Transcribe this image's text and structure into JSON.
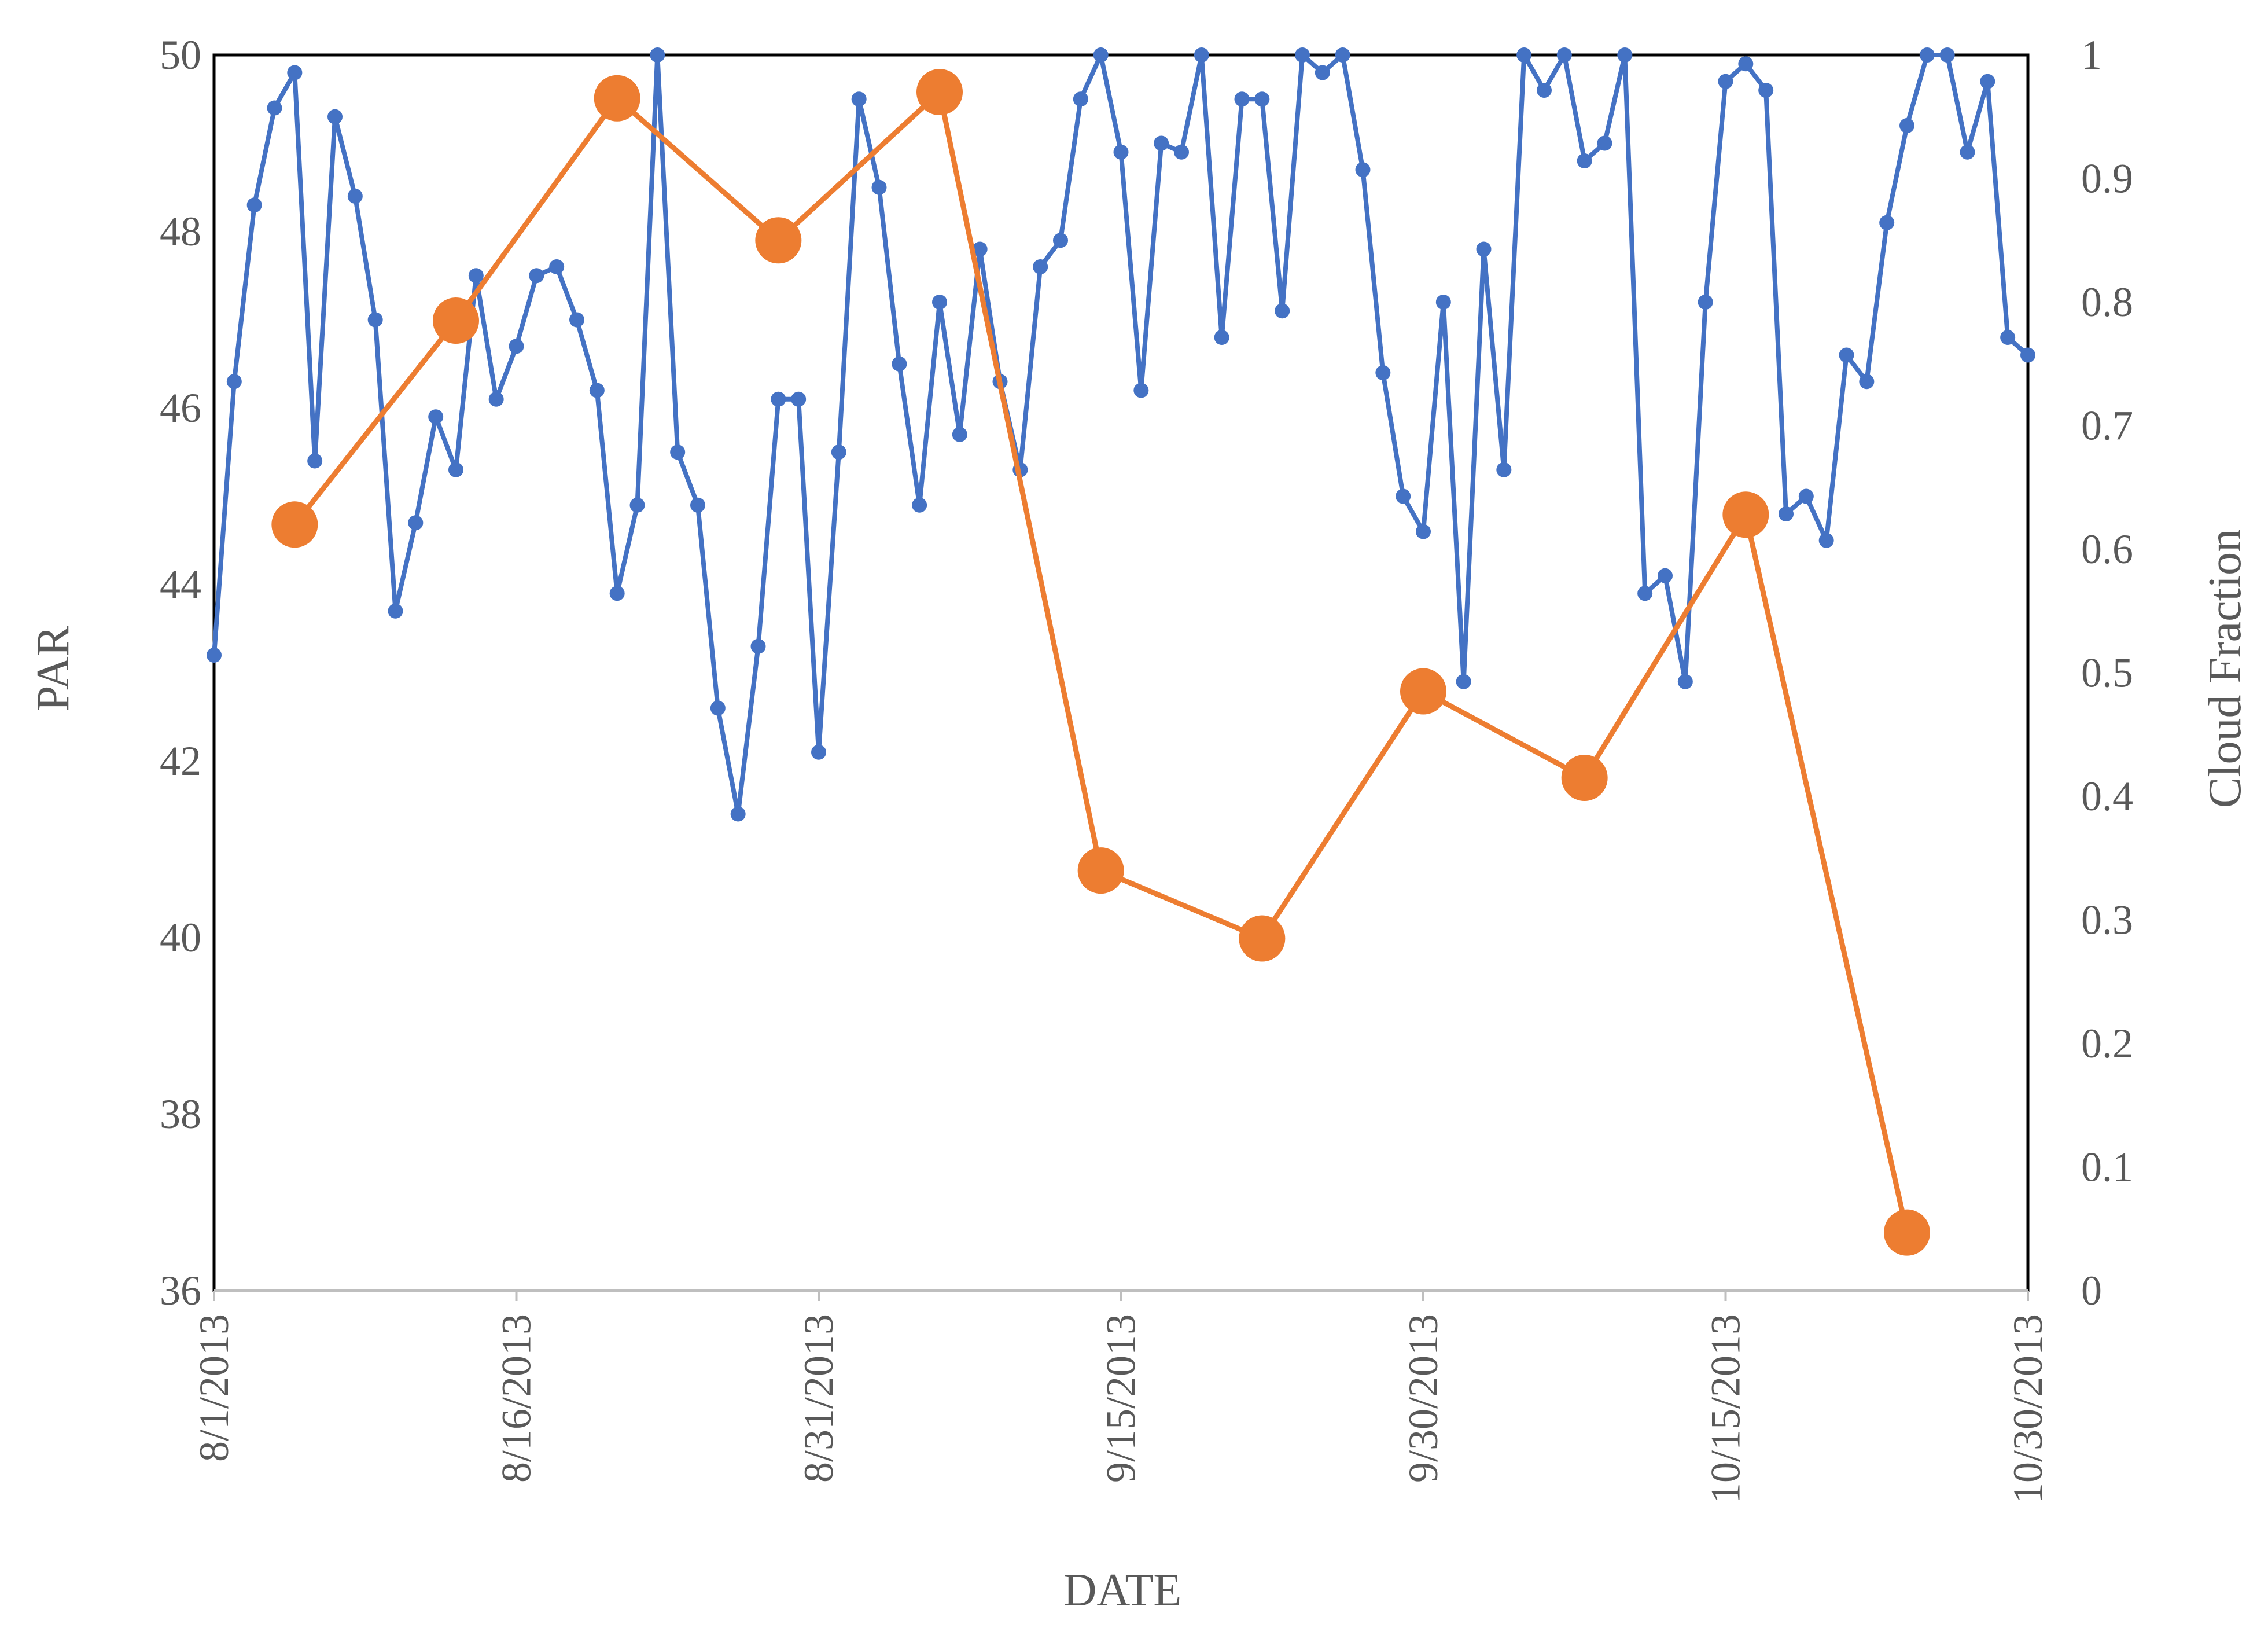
{
  "chart_data": {
    "type": "line",
    "title": "",
    "xlabel": "DATE",
    "ylabel_left": "PAR",
    "ylabel_right": "Cloud Fraction",
    "x_range": [
      "2013-08-01",
      "2013-10-30"
    ],
    "x_tick_labels": [
      "8/1/2013",
      "8/16/2013",
      "8/31/2013",
      "9/15/2013",
      "9/30/2013",
      "10/15/2013",
      "10/30/2013"
    ],
    "y_left_range": [
      36,
      50
    ],
    "y_left_ticks": [
      "36",
      "38",
      "40",
      "42",
      "44",
      "46",
      "48",
      "50"
    ],
    "y_right_range": [
      0,
      1
    ],
    "y_right_ticks": [
      "0",
      "0.1",
      "0.2",
      "0.3",
      "0.4",
      "0.5",
      "0.6",
      "0.7",
      "0.8",
      "0.9",
      "1"
    ],
    "grid": false,
    "legend": "none",
    "series": [
      {
        "axis": "left",
        "color": "#4472C4",
        "x": [
          "2013-08-01",
          "2013-08-02",
          "2013-08-03",
          "2013-08-04",
          "2013-08-05",
          "2013-08-06",
          "2013-08-07",
          "2013-08-08",
          "2013-08-09",
          "2013-08-10",
          "2013-08-11",
          "2013-08-12",
          "2013-08-13",
          "2013-08-14",
          "2013-08-15",
          "2013-08-16",
          "2013-08-17",
          "2013-08-18",
          "2013-08-19",
          "2013-08-20",
          "2013-08-21",
          "2013-08-22",
          "2013-08-23",
          "2013-08-24",
          "2013-08-25",
          "2013-08-26",
          "2013-08-27",
          "2013-08-28",
          "2013-08-29",
          "2013-08-30",
          "2013-08-31",
          "2013-09-01",
          "2013-09-02",
          "2013-09-03",
          "2013-09-04",
          "2013-09-05",
          "2013-09-06",
          "2013-09-07",
          "2013-09-08",
          "2013-09-09",
          "2013-09-10",
          "2013-09-11",
          "2013-09-12",
          "2013-09-13",
          "2013-09-14",
          "2013-09-15",
          "2013-09-16",
          "2013-09-17",
          "2013-09-18",
          "2013-09-19",
          "2013-09-20",
          "2013-09-21",
          "2013-09-22",
          "2013-09-23",
          "2013-09-24",
          "2013-09-25",
          "2013-09-26",
          "2013-09-27",
          "2013-09-28",
          "2013-09-29",
          "2013-09-30",
          "2013-10-01",
          "2013-10-02",
          "2013-10-03",
          "2013-10-04",
          "2013-10-05",
          "2013-10-06",
          "2013-10-07",
          "2013-10-08",
          "2013-10-09",
          "2013-10-10",
          "2013-10-11",
          "2013-10-12",
          "2013-10-13",
          "2013-10-14",
          "2013-10-15",
          "2013-10-16",
          "2013-10-17",
          "2013-10-18",
          "2013-10-19",
          "2013-10-20",
          "2013-10-21",
          "2013-10-22",
          "2013-10-23",
          "2013-10-24",
          "2013-10-25",
          "2013-10-26",
          "2013-10-27",
          "2013-10-28",
          "2013-10-29",
          "2013-10-30"
        ],
        "values": [
          43.2,
          46.3,
          48.3,
          49.4,
          49.8,
          45.4,
          49.3,
          48.4,
          47.0,
          43.7,
          44.7,
          45.9,
          45.3,
          47.5,
          46.1,
          46.7,
          47.5,
          47.6,
          47.0,
          46.2,
          43.9,
          44.9,
          50.0,
          45.5,
          44.9,
          42.6,
          41.4,
          43.3,
          46.1,
          46.1,
          42.1,
          45.5,
          49.5,
          48.5,
          46.5,
          44.9,
          47.2,
          45.7,
          47.8,
          46.3,
          45.3,
          47.6,
          47.9,
          49.5,
          50.0,
          48.9,
          46.2,
          49.0,
          48.9,
          50.0,
          46.8,
          49.5,
          49.5,
          47.1,
          50.0,
          49.8,
          50.0,
          48.7,
          46.4,
          45.0,
          44.6,
          47.2,
          42.9,
          47.8,
          45.3,
          50.0,
          49.6,
          50.0,
          48.8,
          49.0,
          50.0,
          43.9,
          44.1,
          42.9,
          47.2,
          49.7,
          49.9,
          49.6,
          44.8,
          45.0,
          44.5,
          46.6,
          46.3,
          48.1,
          49.2,
          50.0,
          50.0,
          48.9,
          49.7,
          46.8,
          46.6
        ]
      },
      {
        "axis": "right",
        "color": "#ED7D31",
        "x": [
          "2013-08-05",
          "2013-08-13",
          "2013-08-21",
          "2013-08-29",
          "2013-09-06",
          "2013-09-14",
          "2013-09-22",
          "2013-09-30",
          "2013-10-08",
          "2013-10-16",
          "2013-10-24"
        ],
        "values": [
          0.62,
          0.785,
          0.965,
          0.85,
          0.97,
          0.34,
          0.285,
          0.485,
          0.415,
          0.628,
          0.047
        ]
      }
    ]
  }
}
